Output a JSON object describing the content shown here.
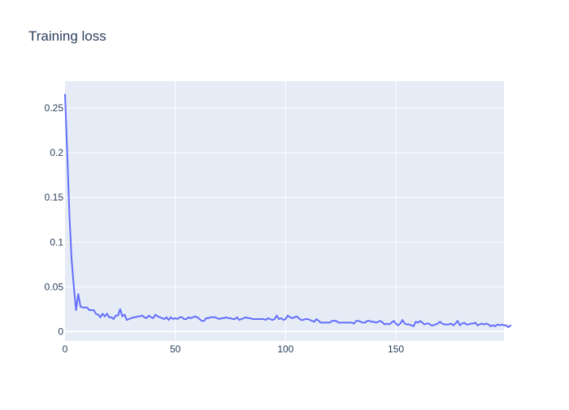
{
  "chart_data": {
    "type": "line",
    "title": "Training loss",
    "xlabel": "",
    "ylabel": "",
    "xlim": [
      0,
      199
    ],
    "ylim": [
      -0.0105,
      0.28
    ],
    "grid": true,
    "legend": "none",
    "x_ticks": [
      0,
      50,
      100,
      150
    ],
    "x_tick_labels": [
      "0",
      "50",
      "100",
      "150"
    ],
    "y_ticks": [
      0,
      0.05,
      0.1,
      0.15,
      0.2,
      0.25
    ],
    "y_tick_labels": [
      "0",
      "0.05",
      "0.1",
      "0.15",
      "0.2",
      "0.25"
    ],
    "colors": {
      "plot_bg": "#E5ECF6",
      "grid": "#ffffff",
      "line": "#636EFA",
      "text": "#2a3f5f"
    },
    "series": [
      {
        "values": [
          0.265,
          0.2,
          0.13,
          0.08,
          0.05,
          0.024,
          0.042,
          0.028,
          0.027,
          0.027,
          0.027,
          0.024,
          0.024,
          0.024,
          0.02,
          0.019,
          0.016,
          0.02,
          0.017,
          0.02,
          0.016,
          0.016,
          0.014,
          0.018,
          0.018,
          0.025,
          0.017,
          0.019,
          0.013,
          0.014,
          0.015,
          0.016,
          0.016,
          0.017,
          0.017,
          0.018,
          0.016,
          0.015,
          0.018,
          0.016,
          0.015,
          0.019,
          0.017,
          0.016,
          0.015,
          0.014,
          0.016,
          0.013,
          0.016,
          0.014,
          0.015,
          0.014,
          0.016,
          0.016,
          0.014,
          0.014,
          0.016,
          0.015,
          0.016,
          0.017,
          0.016,
          0.014,
          0.012,
          0.012,
          0.015,
          0.015,
          0.016,
          0.016,
          0.016,
          0.015,
          0.014,
          0.015,
          0.015,
          0.016,
          0.015,
          0.015,
          0.014,
          0.014,
          0.016,
          0.013,
          0.014,
          0.015,
          0.016,
          0.015,
          0.015,
          0.014,
          0.014,
          0.014,
          0.014,
          0.014,
          0.014,
          0.013,
          0.015,
          0.014,
          0.013,
          0.014,
          0.018,
          0.014,
          0.015,
          0.013,
          0.014,
          0.018,
          0.016,
          0.015,
          0.016,
          0.017,
          0.015,
          0.013,
          0.013,
          0.014,
          0.014,
          0.013,
          0.012,
          0.011,
          0.014,
          0.012,
          0.01,
          0.01,
          0.01,
          0.01,
          0.01,
          0.012,
          0.012,
          0.012,
          0.01,
          0.01,
          0.01,
          0.01,
          0.01,
          0.01,
          0.01,
          0.009,
          0.012,
          0.012,
          0.011,
          0.01,
          0.01,
          0.012,
          0.012,
          0.011,
          0.011,
          0.01,
          0.011,
          0.012,
          0.01,
          0.008,
          0.009,
          0.008,
          0.01,
          0.012,
          0.009,
          0.007,
          0.009,
          0.013,
          0.009,
          0.008,
          0.008,
          0.007,
          0.006,
          0.011,
          0.01,
          0.012,
          0.01,
          0.008,
          0.009,
          0.009,
          0.007,
          0.007,
          0.008,
          0.009,
          0.011,
          0.009,
          0.008,
          0.008,
          0.008,
          0.009,
          0.007,
          0.009,
          0.012,
          0.007,
          0.009,
          0.01,
          0.008,
          0.008,
          0.009,
          0.009,
          0.01,
          0.007,
          0.008,
          0.009,
          0.008,
          0.009,
          0.008,
          0.006,
          0.007,
          0.006,
          0.008,
          0.007,
          0.008,
          0.007,
          0.007,
          0.005,
          0.007
        ]
      }
    ]
  }
}
